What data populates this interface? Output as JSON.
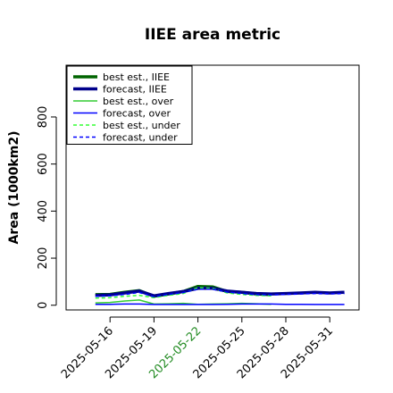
{
  "chart_data": {
    "type": "line",
    "title": "IIEE area metric",
    "xlabel": "",
    "ylabel": "Area (1000km2)",
    "ylim": [
      -20,
      1020
    ],
    "yticks": [
      0,
      200,
      400,
      600,
      800
    ],
    "xlim": [
      "2025-05-13",
      "2025-06-02"
    ],
    "xticks": [
      {
        "label": "2025-05-16",
        "color": "#000000"
      },
      {
        "label": "2025-05-19",
        "color": "#000000"
      },
      {
        "label": "2025-05-22",
        "color": "#228B22"
      },
      {
        "label": "2025-05-25",
        "color": "#000000"
      },
      {
        "label": "2025-05-28",
        "color": "#000000"
      },
      {
        "label": "2025-05-31",
        "color": "#000000"
      }
    ],
    "grid": false,
    "legend": "top-left",
    "series": [
      {
        "name": "best est., IIEE",
        "color": "#006400",
        "style": "solid",
        "width": 3.5,
        "x": [
          "2025-05-15",
          "2025-05-16",
          "2025-05-17",
          "2025-05-18",
          "2025-05-19",
          "2025-05-20",
          "2025-05-21",
          "2025-05-22",
          "2025-05-23",
          "2025-05-24",
          "2025-05-25",
          "2025-05-26",
          "2025-05-27"
        ],
        "y": [
          45,
          46,
          55,
          62,
          38,
          48,
          58,
          80,
          78,
          58,
          55,
          48,
          45
        ]
      },
      {
        "name": "forecast, IIEE",
        "color": "#00008B",
        "style": "solid",
        "width": 3.5,
        "x": [
          "2025-05-15",
          "2025-05-16",
          "2025-05-17",
          "2025-05-18",
          "2025-05-19",
          "2025-05-20",
          "2025-05-21",
          "2025-05-22",
          "2025-05-23",
          "2025-05-24",
          "2025-05-25",
          "2025-05-26",
          "2025-05-27",
          "2025-05-28",
          "2025-05-29",
          "2025-05-30",
          "2025-05-31",
          "2025-06-01"
        ],
        "y": [
          42,
          44,
          52,
          60,
          40,
          50,
          58,
          72,
          72,
          60,
          55,
          50,
          48,
          50,
          52,
          55,
          52,
          55
        ]
      },
      {
        "name": "best est., over",
        "color": "#33CC33",
        "style": "solid",
        "width": 1.5,
        "x": [
          "2025-05-15",
          "2025-05-16",
          "2025-05-17",
          "2025-05-18",
          "2025-05-19",
          "2025-05-20",
          "2025-05-21",
          "2025-05-22",
          "2025-05-23",
          "2025-05-24",
          "2025-05-25",
          "2025-05-26",
          "2025-05-27"
        ],
        "y": [
          10,
          12,
          18,
          22,
          5,
          6,
          8,
          4,
          5,
          6,
          8,
          6,
          4
        ]
      },
      {
        "name": "forecast, over",
        "color": "#0000FF",
        "style": "solid",
        "width": 1.5,
        "x": [
          "2025-05-15",
          "2025-05-16",
          "2025-05-17",
          "2025-05-18",
          "2025-05-19",
          "2025-05-20",
          "2025-05-21",
          "2025-05-22",
          "2025-05-23",
          "2025-05-24",
          "2025-05-25",
          "2025-05-26",
          "2025-05-27",
          "2025-05-28",
          "2025-05-29",
          "2025-05-30",
          "2025-05-31",
          "2025-06-01"
        ],
        "y": [
          4,
          4,
          5,
          5,
          3,
          3,
          3,
          3,
          3,
          4,
          5,
          5,
          5,
          4,
          4,
          3,
          3,
          3
        ]
      },
      {
        "name": "best est., under",
        "color": "#33FF33",
        "style": "dashed",
        "width": 1.5,
        "x": [
          "2025-05-15",
          "2025-05-16",
          "2025-05-17",
          "2025-05-18",
          "2025-05-19",
          "2025-05-20",
          "2025-05-21",
          "2025-05-22",
          "2025-05-23",
          "2025-05-24",
          "2025-05-25",
          "2025-05-26",
          "2025-05-27"
        ],
        "y": [
          30,
          32,
          38,
          42,
          32,
          42,
          50,
          75,
          72,
          52,
          46,
          42,
          40
        ]
      },
      {
        "name": "forecast, under",
        "color": "#0000FF",
        "style": "dashed",
        "width": 1.5,
        "x": [
          "2025-05-15",
          "2025-05-16",
          "2025-05-17",
          "2025-05-18",
          "2025-05-19",
          "2025-05-20",
          "2025-05-21",
          "2025-05-22",
          "2025-05-23",
          "2025-05-24",
          "2025-05-25",
          "2025-05-26",
          "2025-05-27",
          "2025-05-28",
          "2025-05-29",
          "2025-05-30",
          "2025-05-31",
          "2025-06-01"
        ],
        "y": [
          38,
          40,
          46,
          54,
          36,
          46,
          54,
          68,
          68,
          56,
          50,
          45,
          44,
          46,
          48,
          50,
          48,
          50
        ]
      }
    ]
  }
}
